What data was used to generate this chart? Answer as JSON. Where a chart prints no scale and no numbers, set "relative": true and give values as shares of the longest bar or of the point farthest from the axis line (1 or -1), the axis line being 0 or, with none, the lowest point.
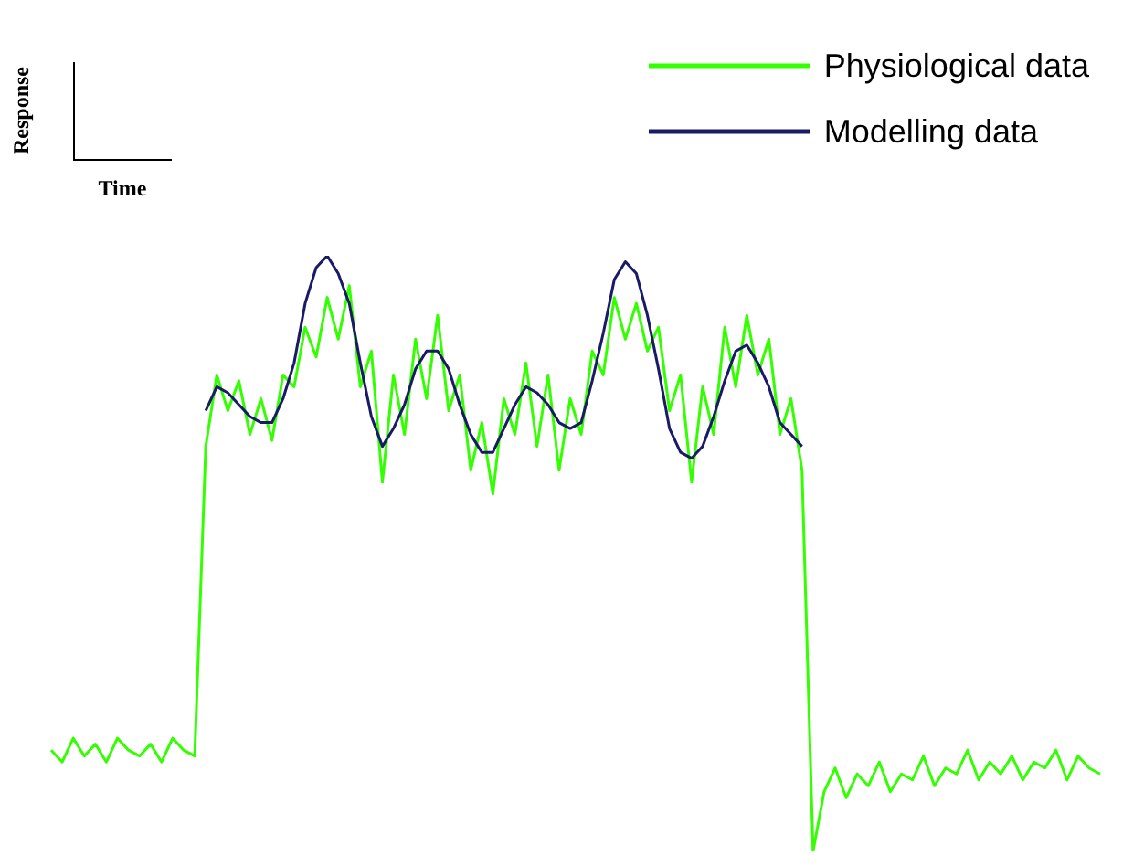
{
  "chart_data": {
    "type": "line",
    "relative": true,
    "xlabel": "Time",
    "ylabel": "Response",
    "legend": "top right",
    "categories": [
      null,
      null,
      null,
      null,
      null,
      null,
      null,
      null,
      null,
      null,
      null,
      null,
      null,
      null,
      null,
      null,
      null,
      null,
      null,
      null,
      null,
      null,
      null,
      null,
      null,
      null,
      null,
      null,
      null,
      null,
      null,
      null,
      null,
      null,
      null,
      null,
      null,
      null,
      null,
      null,
      null,
      null,
      null,
      null,
      null,
      null,
      null,
      null,
      null,
      null,
      null,
      null,
      null,
      null,
      null,
      null,
      null,
      null,
      null,
      null,
      null,
      null,
      null,
      null,
      null,
      null,
      null,
      null,
      null,
      null,
      null,
      null,
      null,
      null,
      null,
      null,
      null,
      null,
      null,
      null,
      null,
      null,
      null,
      null,
      null,
      null,
      null,
      null,
      null,
      null,
      null,
      null,
      null,
      null,
      null,
      null
    ],
    "series": [
      {
        "name": "Physiological data",
        "color": "#33ff00",
        "values": [
          0.17,
          0.15,
          0.19,
          0.16,
          0.18,
          0.15,
          0.19,
          0.17,
          0.16,
          0.18,
          0.15,
          0.19,
          0.17,
          0.16,
          0.68,
          0.8,
          0.74,
          0.79,
          0.7,
          0.76,
          0.69,
          0.8,
          0.78,
          0.88,
          0.83,
          0.93,
          0.86,
          0.95,
          0.78,
          0.84,
          0.62,
          0.8,
          0.7,
          0.86,
          0.76,
          0.9,
          0.74,
          0.8,
          0.64,
          0.72,
          0.6,
          0.76,
          0.7,
          0.82,
          0.68,
          0.8,
          0.64,
          0.76,
          0.7,
          0.84,
          0.8,
          0.93,
          0.86,
          0.92,
          0.84,
          0.88,
          0.74,
          0.8,
          0.62,
          0.78,
          0.7,
          0.88,
          0.78,
          0.9,
          0.8,
          0.86,
          0.7,
          0.76,
          0.64,
          0.0,
          0.1,
          0.14,
          0.09,
          0.13,
          0.11,
          0.15,
          0.1,
          0.13,
          0.12,
          0.16,
          0.11,
          0.14,
          0.13,
          0.17,
          0.12,
          0.15,
          0.13,
          0.16,
          0.12,
          0.15,
          0.14,
          0.17,
          0.12,
          0.16,
          0.14,
          0.13
        ]
      },
      {
        "name": "Modelling data",
        "color": "#1a1a66",
        "values": [
          null,
          null,
          null,
          null,
          null,
          null,
          null,
          null,
          null,
          null,
          null,
          null,
          null,
          null,
          0.74,
          0.78,
          0.77,
          0.75,
          0.73,
          0.72,
          0.72,
          0.76,
          0.82,
          0.92,
          0.98,
          1.0,
          0.97,
          0.92,
          0.82,
          0.73,
          0.68,
          0.71,
          0.75,
          0.81,
          0.84,
          0.84,
          0.81,
          0.75,
          0.7,
          0.67,
          0.67,
          0.71,
          0.75,
          0.78,
          0.77,
          0.75,
          0.72,
          0.71,
          0.72,
          0.79,
          0.87,
          0.96,
          0.99,
          0.97,
          0.9,
          0.81,
          0.71,
          0.67,
          0.66,
          0.68,
          0.73,
          0.79,
          0.84,
          0.85,
          0.82,
          0.78,
          0.72,
          0.7,
          0.68,
          null,
          null,
          null,
          null,
          null,
          null,
          null,
          null,
          null,
          null,
          null,
          null,
          null,
          null,
          null,
          null,
          null,
          null,
          null,
          null,
          null,
          null,
          null,
          null,
          null,
          null,
          null
        ]
      }
    ]
  }
}
